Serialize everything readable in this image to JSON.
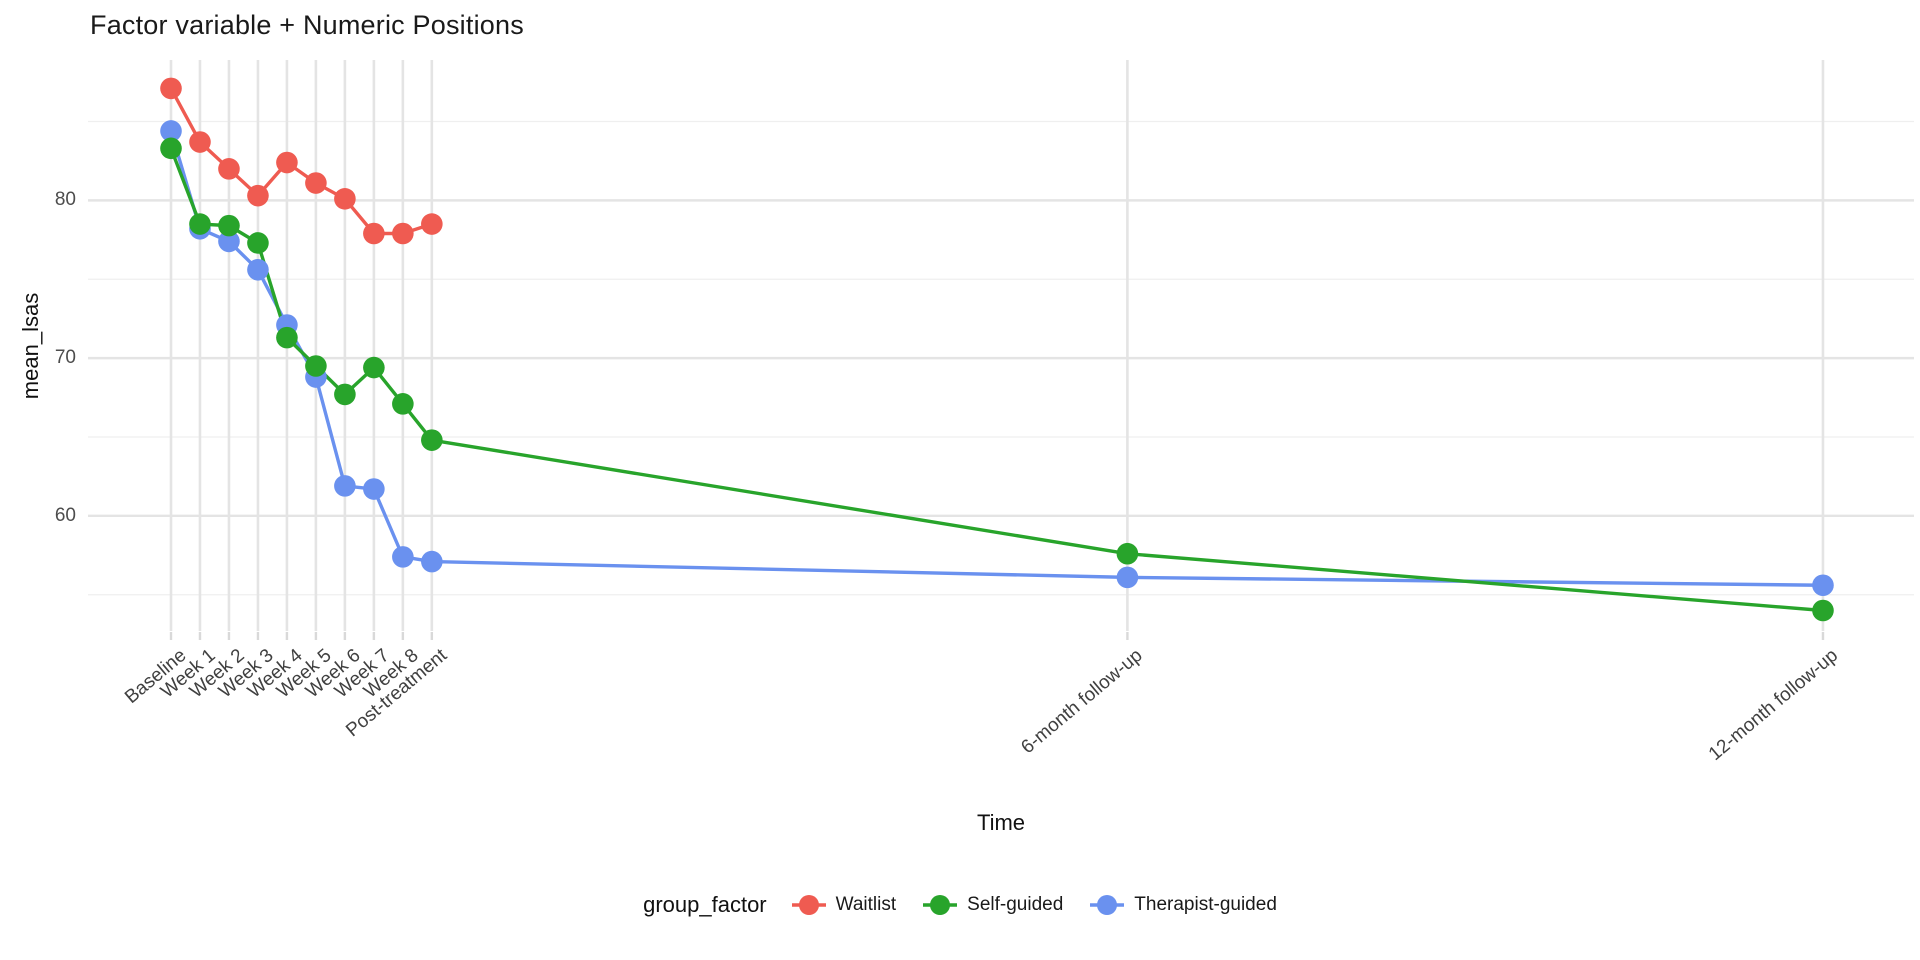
{
  "chart": {
    "title": "Factor variable + Numeric Positions",
    "x_axis_title": "Time",
    "y_axis_title": "mean_lsas"
  },
  "legend": {
    "title": "group_factor",
    "entries": [
      {
        "label": "Waitlist",
        "color": "#EF5B51"
      },
      {
        "label": "Self-guided",
        "color": "#28A42B"
      },
      {
        "label": "Therapist-guided",
        "color": "#6A91EF"
      }
    ]
  },
  "chart_data": {
    "type": "line",
    "title": "Factor variable + Numeric Positions",
    "xlabel": "Time",
    "ylabel": "mean_lsas",
    "categories": [
      "Baseline",
      "Week 1",
      "Week 2",
      "Week 3",
      "Week 4",
      "Week 5",
      "Week 6",
      "Week 7",
      "Week 8",
      "Post-treatment",
      "6-month follow-up",
      "12-month follow-up"
    ],
    "x_numeric_positions": [
      0,
      1,
      2,
      3,
      4,
      5,
      6,
      7,
      8,
      9,
      33,
      57
    ],
    "y_ticks": [
      60,
      70,
      80
    ],
    "y_minor_gridlines": [
      55,
      65,
      75,
      85
    ],
    "ylim": [
      52.7,
      88.9
    ],
    "grid": true,
    "legend_title": "group_factor",
    "legend_position": "bottom",
    "series": [
      {
        "name": "Waitlist",
        "color": "#EF5B51",
        "x": [
          0,
          1,
          2,
          3,
          4,
          5,
          6,
          7,
          8,
          9
        ],
        "values": [
          87.1,
          83.7,
          82.0,
          80.3,
          82.4,
          81.1,
          80.1,
          77.9,
          77.9,
          78.5
        ]
      },
      {
        "name": "Self-guided",
        "color": "#28A42B",
        "x": [
          0,
          1,
          2,
          3,
          4,
          5,
          6,
          7,
          8,
          9,
          33,
          57
        ],
        "values": [
          83.3,
          78.5,
          78.4,
          77.3,
          71.3,
          69.5,
          67.7,
          69.4,
          67.1,
          64.8,
          57.6,
          54.0
        ]
      },
      {
        "name": "Therapist-guided",
        "color": "#6A91EF",
        "x": [
          0,
          1,
          2,
          3,
          4,
          5,
          6,
          7,
          8,
          9,
          33,
          57
        ],
        "values": [
          84.4,
          78.2,
          77.4,
          75.6,
          72.1,
          68.8,
          61.9,
          61.7,
          57.4,
          57.1,
          56.1,
          55.6
        ]
      }
    ]
  }
}
